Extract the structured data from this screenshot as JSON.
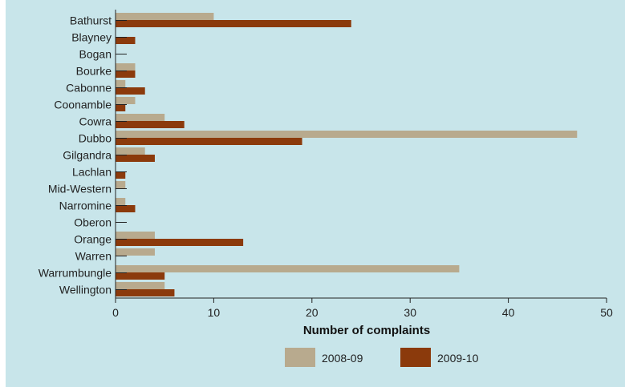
{
  "chart_data": {
    "type": "bar",
    "orientation": "horizontal",
    "categories": [
      "Bathurst",
      "Blayney",
      "Bogan",
      "Bourke",
      "Cabonne",
      "Coonamble",
      "Cowra",
      "Dubbo",
      "Gilgandra",
      "Lachlan",
      "Mid-Western",
      "Narromine",
      "Oberon",
      "Orange",
      "Warren",
      "Warrumbungle",
      "Wellington"
    ],
    "series": [
      {
        "name": "2008-09",
        "color": "#b8aa8e",
        "values": [
          10,
          0,
          0,
          2,
          1,
          2,
          5,
          47,
          3,
          0,
          1,
          1,
          0,
          4,
          4,
          35,
          5
        ]
      },
      {
        "name": "2009-10",
        "color": "#8b3a0c",
        "values": [
          24,
          2,
          0,
          2,
          3,
          1,
          7,
          19,
          4,
          1,
          0,
          2,
          0,
          13,
          0,
          5,
          6
        ]
      }
    ],
    "xlabel": "Number of complaints",
    "xlim": [
      0,
      50
    ],
    "xticks": [
      0,
      10,
      20,
      30,
      40,
      50
    ],
    "legend_position": "bottom",
    "grid": false
  }
}
